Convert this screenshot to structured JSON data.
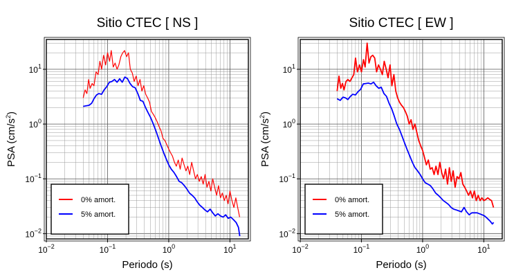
{
  "chart_data": [
    {
      "type": "line",
      "title": "Sitio CTEC [ NS ]",
      "xlabel": "Periodo (s)",
      "ylabel": {
        "base": "PSA (cm/s",
        "sup": "2",
        "tail": ")"
      },
      "xscale": "log",
      "yscale": "log",
      "xlim": [
        0.01,
        20
      ],
      "ylim": [
        0.008,
        35
      ],
      "xticks": [
        {
          "value": 0.01,
          "base": "10",
          "exp": "−2"
        },
        {
          "value": 0.1,
          "base": "10",
          "exp": "−1"
        },
        {
          "value": 1,
          "base": "10",
          "exp": "0"
        },
        {
          "value": 10,
          "base": "10",
          "exp": "1"
        }
      ],
      "yticks": [
        {
          "value": 0.01,
          "base": "10",
          "exp": "−2"
        },
        {
          "value": 0.1,
          "base": "10",
          "exp": "−1"
        },
        {
          "value": 1,
          "base": "10",
          "exp": "0"
        },
        {
          "value": 10,
          "base": "10",
          "exp": "1"
        }
      ],
      "grid": true,
      "legend_position": "bottom-left",
      "series": [
        {
          "name": "0% amort.",
          "color": "#ff0000",
          "width": 1.2,
          "x": [
            0.04,
            0.043,
            0.046,
            0.049,
            0.052,
            0.056,
            0.06,
            0.065,
            0.07,
            0.075,
            0.08,
            0.086,
            0.093,
            0.1,
            0.108,
            0.115,
            0.124,
            0.133,
            0.143,
            0.153,
            0.165,
            0.177,
            0.19,
            0.205,
            0.22,
            0.236,
            0.254,
            0.273,
            0.293,
            0.315,
            0.339,
            0.364,
            0.391,
            0.42,
            0.452,
            0.486,
            0.522,
            0.561,
            0.603,
            0.648,
            0.697,
            0.749,
            0.805,
            0.865,
            0.93,
            1.0,
            1.07,
            1.15,
            1.24,
            1.33,
            1.43,
            1.54,
            1.65,
            1.78,
            1.91,
            2.05,
            2.2,
            2.37,
            2.55,
            2.74,
            2.94,
            3.16,
            3.4,
            3.65,
            3.93,
            4.22,
            4.54,
            4.88,
            5.24,
            5.63,
            6.06,
            6.51,
            7.0,
            7.52,
            8.08,
            8.69,
            9.34,
            10.0,
            10.8,
            11.6,
            12.5,
            13.4,
            14.4
          ],
          "y": [
            3.0,
            4.2,
            3.6,
            6.5,
            4.5,
            5.5,
            5.0,
            9.0,
            8.0,
            14.0,
            10.0,
            18.0,
            12.0,
            20.0,
            14.0,
            22.0,
            11.0,
            13.0,
            10.0,
            12.0,
            17.0,
            20.0,
            22.0,
            17.0,
            20.0,
            10.0,
            8.5,
            6.0,
            7.5,
            5.0,
            6.5,
            4.0,
            5.0,
            3.5,
            3.0,
            2.5,
            1.7,
            1.5,
            1.3,
            1.1,
            0.9,
            0.75,
            0.55,
            0.5,
            0.42,
            0.35,
            0.3,
            0.26,
            0.2,
            0.17,
            0.22,
            0.15,
            0.24,
            0.18,
            0.14,
            0.17,
            0.12,
            0.2,
            0.14,
            0.1,
            0.12,
            0.09,
            0.11,
            0.08,
            0.12,
            0.07,
            0.09,
            0.06,
            0.1,
            0.07,
            0.05,
            0.075,
            0.045,
            0.055,
            0.04,
            0.05,
            0.035,
            0.06,
            0.04,
            0.03,
            0.045,
            0.03,
            0.02
          ]
        },
        {
          "name": "5% amort.",
          "color": "#0000ff",
          "width": 1.8,
          "x": [
            0.04,
            0.045,
            0.05,
            0.055,
            0.06,
            0.066,
            0.072,
            0.08,
            0.088,
            0.097,
            0.107,
            0.118,
            0.13,
            0.143,
            0.158,
            0.174,
            0.192,
            0.211,
            0.233,
            0.257,
            0.283,
            0.312,
            0.344,
            0.379,
            0.418,
            0.461,
            0.508,
            0.56,
            0.617,
            0.68,
            0.75,
            0.826,
            0.911,
            1.0,
            1.1,
            1.22,
            1.34,
            1.48,
            1.63,
            1.8,
            1.98,
            2.18,
            2.41,
            2.65,
            2.92,
            3.22,
            3.55,
            3.91,
            4.31,
            4.75,
            5.24,
            5.77,
            6.36,
            7.01,
            7.73,
            8.52,
            9.39,
            10.3,
            11.4,
            12.6,
            13.8,
            14.5
          ],
          "y": [
            2.1,
            2.15,
            2.2,
            2.4,
            2.9,
            3.4,
            3.6,
            3.5,
            4.2,
            4.8,
            5.8,
            6.0,
            6.5,
            5.8,
            6.7,
            5.8,
            7.2,
            6.8,
            5.5,
            4.8,
            4.6,
            3.6,
            2.7,
            2.6,
            2.0,
            1.6,
            1.3,
            1.0,
            0.75,
            0.55,
            0.4,
            0.3,
            0.23,
            0.18,
            0.15,
            0.13,
            0.11,
            0.09,
            0.085,
            0.075,
            0.065,
            0.055,
            0.05,
            0.045,
            0.038,
            0.033,
            0.03,
            0.027,
            0.025,
            0.028,
            0.024,
            0.021,
            0.023,
            0.021,
            0.02,
            0.022,
            0.019,
            0.02,
            0.018,
            0.016,
            0.013,
            0.009
          ]
        }
      ]
    },
    {
      "type": "line",
      "title": "Sitio CTEC [ EW ]",
      "xlabel": "Periodo (s)",
      "ylabel": {
        "base": "PSA (cm/s",
        "sup": "2",
        "tail": ")"
      },
      "xscale": "log",
      "yscale": "log",
      "xlim": [
        0.01,
        20
      ],
      "ylim": [
        0.008,
        35
      ],
      "xticks": [
        {
          "value": 0.01,
          "base": "10",
          "exp": "−2"
        },
        {
          "value": 0.1,
          "base": "10",
          "exp": "−1"
        },
        {
          "value": 1,
          "base": "10",
          "exp": "0"
        },
        {
          "value": 10,
          "base": "10",
          "exp": "1"
        }
      ],
      "yticks": [
        {
          "value": 0.01,
          "base": "10",
          "exp": "−2"
        },
        {
          "value": 0.1,
          "base": "10",
          "exp": "−1"
        },
        {
          "value": 1,
          "base": "10",
          "exp": "0"
        },
        {
          "value": 10,
          "base": "10",
          "exp": "1"
        }
      ],
      "grid": true,
      "legend_position": "bottom-left",
      "series": [
        {
          "name": "0% amort.",
          "color": "#ff0000",
          "width": 1.8,
          "x": [
            0.04,
            0.043,
            0.046,
            0.049,
            0.052,
            0.056,
            0.06,
            0.065,
            0.07,
            0.075,
            0.08,
            0.086,
            0.093,
            0.1,
            0.108,
            0.115,
            0.124,
            0.133,
            0.143,
            0.153,
            0.165,
            0.177,
            0.19,
            0.205,
            0.22,
            0.236,
            0.254,
            0.273,
            0.293,
            0.315,
            0.339,
            0.364,
            0.391,
            0.42,
            0.452,
            0.486,
            0.522,
            0.561,
            0.603,
            0.648,
            0.697,
            0.749,
            0.805,
            0.865,
            0.93,
            1.0,
            1.07,
            1.15,
            1.24,
            1.33,
            1.43,
            1.54,
            1.65,
            1.78,
            1.91,
            2.05,
            2.2,
            2.37,
            2.55,
            2.74,
            2.94,
            3.16,
            3.4,
            3.65,
            3.93,
            4.22,
            4.54,
            4.88,
            5.24,
            5.63,
            6.06,
            6.51,
            7.0,
            7.52,
            8.08,
            8.69,
            9.34,
            10.0,
            10.8,
            11.6,
            12.5,
            13.4,
            14.4
          ],
          "y": [
            4.0,
            7.5,
            4.5,
            5.5,
            4.2,
            6.0,
            6.5,
            6.0,
            7.0,
            8.0,
            16.0,
            9.0,
            12.0,
            9.0,
            15.0,
            11.0,
            30.0,
            13.0,
            17.0,
            18.0,
            16.0,
            9.0,
            12.0,
            10.0,
            8.0,
            14.0,
            10.0,
            7.0,
            12.0,
            5.0,
            8.0,
            4.0,
            3.0,
            2.5,
            2.2,
            2.0,
            1.7,
            1.4,
            1.0,
            1.2,
            0.8,
            1.0,
            0.7,
            0.5,
            0.4,
            0.33,
            0.25,
            0.18,
            0.22,
            0.15,
            0.16,
            0.12,
            0.17,
            0.12,
            0.2,
            0.13,
            0.1,
            0.15,
            0.08,
            0.16,
            0.09,
            0.14,
            0.07,
            0.11,
            0.1,
            0.13,
            0.08,
            0.07,
            0.06,
            0.05,
            0.06,
            0.045,
            0.06,
            0.04,
            0.05,
            0.04,
            0.045,
            0.04,
            0.042,
            0.045,
            0.042,
            0.04,
            0.03
          ]
        },
        {
          "name": "5% amort.",
          "color": "#0000ff",
          "width": 1.8,
          "x": [
            0.04,
            0.045,
            0.05,
            0.055,
            0.06,
            0.066,
            0.072,
            0.08,
            0.088,
            0.097,
            0.107,
            0.118,
            0.13,
            0.143,
            0.158,
            0.174,
            0.192,
            0.211,
            0.233,
            0.257,
            0.283,
            0.312,
            0.344,
            0.379,
            0.418,
            0.461,
            0.508,
            0.56,
            0.617,
            0.68,
            0.75,
            0.826,
            0.911,
            1.0,
            1.1,
            1.22,
            1.34,
            1.48,
            1.63,
            1.8,
            1.98,
            2.18,
            2.41,
            2.65,
            2.92,
            3.22,
            3.55,
            3.91,
            4.31,
            4.75,
            5.24,
            5.77,
            6.36,
            7.01,
            7.73,
            8.52,
            9.39,
            10.3,
            11.4,
            12.6,
            13.8,
            14.5
          ],
          "y": [
            2.9,
            2.7,
            3.1,
            3.0,
            2.8,
            3.2,
            3.5,
            3.4,
            3.9,
            4.3,
            5.4,
            5.5,
            5.6,
            5.4,
            5.8,
            5.0,
            4.5,
            4.7,
            3.6,
            3.2,
            2.4,
            1.9,
            1.4,
            1.0,
            0.8,
            0.6,
            0.45,
            0.34,
            0.26,
            0.2,
            0.16,
            0.14,
            0.12,
            0.1,
            0.085,
            0.08,
            0.075,
            0.065,
            0.055,
            0.05,
            0.045,
            0.04,
            0.037,
            0.034,
            0.03,
            0.028,
            0.027,
            0.026,
            0.025,
            0.03,
            0.025,
            0.022,
            0.024,
            0.024,
            0.024,
            0.023,
            0.022,
            0.021,
            0.019,
            0.017,
            0.015,
            0.016
          ]
        }
      ]
    }
  ]
}
